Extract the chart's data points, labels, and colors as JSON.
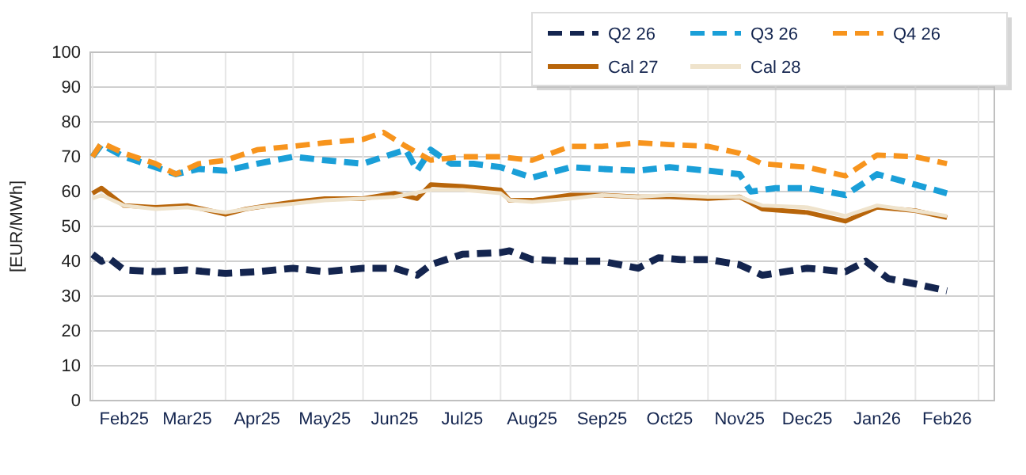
{
  "chart_data": {
    "type": "line",
    "ylabel": "[EUR/MWh]",
    "xlim": [
      "2025-01-31",
      "2026-03-08"
    ],
    "ylim": [
      0,
      100
    ],
    "yticks": [
      0,
      10,
      20,
      30,
      40,
      50,
      60,
      70,
      80,
      90,
      100
    ],
    "xticks": [
      {
        "value": "2025-02-01",
        "label": null
      },
      {
        "value": "2025-02-15",
        "label": "Feb25"
      },
      {
        "value": "2025-03-01",
        "label": null
      },
      {
        "value": "2025-03-15",
        "label": "Mar25"
      },
      {
        "value": "2025-04-01",
        "label": null
      },
      {
        "value": "2025-04-15",
        "label": "Apr25"
      },
      {
        "value": "2025-05-01",
        "label": null
      },
      {
        "value": "2025-05-15",
        "label": "May25"
      },
      {
        "value": "2025-06-01",
        "label": null
      },
      {
        "value": "2025-06-15",
        "label": "Jun25"
      },
      {
        "value": "2025-07-01",
        "label": null
      },
      {
        "value": "2025-07-15",
        "label": "Jul25"
      },
      {
        "value": "2025-08-01",
        "label": null
      },
      {
        "value": "2025-08-15",
        "label": "Aug25"
      },
      {
        "value": "2025-09-01",
        "label": null
      },
      {
        "value": "2025-09-15",
        "label": "Sep25"
      },
      {
        "value": "2025-10-01",
        "label": null
      },
      {
        "value": "2025-10-15",
        "label": "Oct25"
      },
      {
        "value": "2025-11-01",
        "label": null
      },
      {
        "value": "2025-11-15",
        "label": "Nov25"
      },
      {
        "value": "2025-12-01",
        "label": null
      },
      {
        "value": "2025-12-15",
        "label": "Dec25"
      },
      {
        "value": "2026-01-01",
        "label": null
      },
      {
        "value": "2026-01-15",
        "label": "Jan26"
      },
      {
        "value": "2026-02-01",
        "label": null
      },
      {
        "value": "2026-02-15",
        "label": "Feb26"
      },
      {
        "value": "2026-03-01",
        "label": null
      }
    ],
    "grid": true,
    "legend": "top right",
    "series": [
      {
        "name": "Q2 26",
        "color": "#14254f",
        "line_style": "dashed",
        "x": [
          "2025-02-01",
          "2025-02-05",
          "2025-02-08",
          "2025-02-15",
          "2025-03-01",
          "2025-03-15",
          "2025-04-01",
          "2025-04-15",
          "2025-05-01",
          "2025-05-15",
          "2025-06-01",
          "2025-06-15",
          "2025-06-25",
          "2025-07-01",
          "2025-07-15",
          "2025-08-01",
          "2025-08-05",
          "2025-08-15",
          "2025-09-01",
          "2025-09-15",
          "2025-10-01",
          "2025-10-10",
          "2025-10-20",
          "2025-11-01",
          "2025-11-15",
          "2025-11-25",
          "2025-12-15",
          "2026-01-01",
          "2026-01-10",
          "2026-01-20",
          "2026-02-01",
          "2026-02-15"
        ],
        "values": [
          42,
          40,
          41,
          37.5,
          37,
          37.5,
          36.5,
          37,
          38,
          37,
          38,
          38,
          36,
          39,
          42,
          42.5,
          43,
          40.5,
          40,
          40,
          38,
          41,
          40.5,
          40.5,
          39,
          36,
          38,
          37,
          40,
          35,
          33.5,
          31.5
        ]
      },
      {
        "name": "Q3 26",
        "color": "#1a9fd8",
        "line_style": "dashed",
        "x": [
          "2025-02-01",
          "2025-02-05",
          "2025-02-15",
          "2025-03-01",
          "2025-03-10",
          "2025-03-20",
          "2025-04-01",
          "2025-04-15",
          "2025-05-01",
          "2025-05-15",
          "2025-06-01",
          "2025-06-15",
          "2025-06-20",
          "2025-06-25",
          "2025-07-01",
          "2025-07-10",
          "2025-07-20",
          "2025-08-01",
          "2025-08-15",
          "2025-09-01",
          "2025-09-15",
          "2025-10-01",
          "2025-10-15",
          "2025-11-01",
          "2025-11-15",
          "2025-11-20",
          "2025-12-01",
          "2025-12-15",
          "2026-01-01",
          "2026-01-15",
          "2026-02-01",
          "2026-02-15"
        ],
        "values": [
          70,
          73.5,
          70,
          67,
          65,
          66.5,
          66,
          68,
          70,
          69,
          68,
          71,
          72,
          66,
          72,
          68,
          68,
          67,
          64,
          67,
          66.5,
          66,
          67,
          66,
          65,
          60,
          61,
          61,
          59,
          65,
          62,
          59.5
        ]
      },
      {
        "name": "Q4 26",
        "color": "#f7941d",
        "line_style": "dashed",
        "x": [
          "2025-02-01",
          "2025-02-05",
          "2025-02-15",
          "2025-03-01",
          "2025-03-10",
          "2025-03-20",
          "2025-04-01",
          "2025-04-15",
          "2025-05-01",
          "2025-05-15",
          "2025-06-01",
          "2025-06-10",
          "2025-06-20",
          "2025-07-01",
          "2025-07-15",
          "2025-08-01",
          "2025-08-15",
          "2025-09-01",
          "2025-09-15",
          "2025-10-01",
          "2025-10-15",
          "2025-11-01",
          "2025-11-15",
          "2025-11-25",
          "2025-12-15",
          "2026-01-01",
          "2026-01-15",
          "2026-02-01",
          "2026-02-15"
        ],
        "values": [
          70,
          74,
          71,
          68,
          65,
          68,
          69,
          72,
          73,
          74,
          75,
          77,
          73,
          69,
          70,
          70,
          69,
          73,
          73,
          74,
          73.5,
          73,
          71,
          68,
          67,
          64.5,
          70.5,
          70,
          68
        ]
      },
      {
        "name": "Cal 27",
        "color": "#b8650a",
        "line_style": "solid",
        "x": [
          "2025-02-01",
          "2025-02-05",
          "2025-02-15",
          "2025-03-01",
          "2025-03-15",
          "2025-04-01",
          "2025-04-10",
          "2025-04-20",
          "2025-05-01",
          "2025-05-15",
          "2025-06-01",
          "2025-06-15",
          "2025-06-25",
          "2025-07-01",
          "2025-07-15",
          "2025-08-01",
          "2025-08-05",
          "2025-08-15",
          "2025-09-01",
          "2025-09-15",
          "2025-10-01",
          "2025-10-15",
          "2025-11-01",
          "2025-11-15",
          "2025-11-25",
          "2025-12-15",
          "2026-01-01",
          "2026-01-15",
          "2026-02-01",
          "2026-02-15"
        ],
        "values": [
          59.5,
          61,
          56,
          55.5,
          56,
          53.5,
          55,
          56,
          57,
          58,
          58,
          59.5,
          58,
          62,
          61.5,
          60.5,
          57.5,
          57.5,
          59,
          59,
          58.5,
          58.5,
          58,
          58.5,
          55,
          54,
          51.5,
          55.5,
          54.5,
          52.5
        ]
      },
      {
        "name": "Cal 28",
        "color": "#efe3cc",
        "line_style": "solid",
        "x": [
          "2025-02-01",
          "2025-02-05",
          "2025-02-15",
          "2025-03-01",
          "2025-03-15",
          "2025-04-01",
          "2025-04-15",
          "2025-05-01",
          "2025-05-15",
          "2025-06-01",
          "2025-06-15",
          "2025-07-01",
          "2025-07-15",
          "2025-08-01",
          "2025-08-05",
          "2025-08-15",
          "2025-09-01",
          "2025-09-15",
          "2025-10-01",
          "2025-10-15",
          "2025-11-01",
          "2025-11-15",
          "2025-11-25",
          "2025-12-15",
          "2026-01-01",
          "2026-01-15",
          "2026-02-01",
          "2026-02-15"
        ],
        "values": [
          58,
          59,
          56,
          55,
          55.5,
          54,
          55.5,
          56.5,
          57.5,
          58,
          58.5,
          60.5,
          60.5,
          59.5,
          57.5,
          57,
          58,
          59,
          58.5,
          59,
          58.5,
          58.5,
          56,
          55.5,
          53,
          56,
          54.5,
          53
        ]
      }
    ]
  }
}
